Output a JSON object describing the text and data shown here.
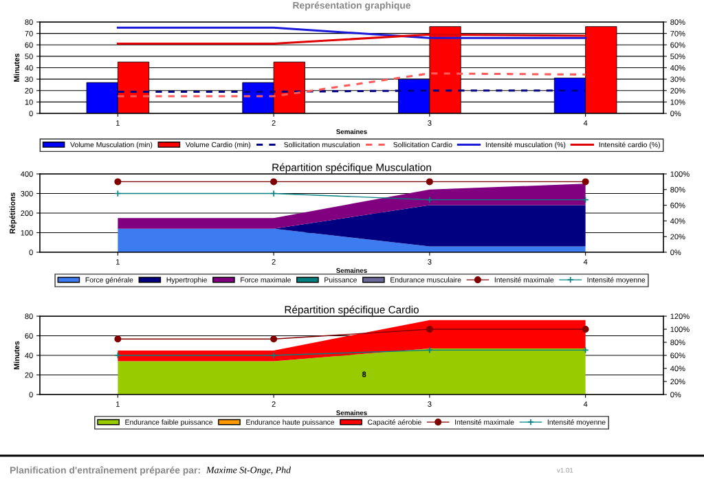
{
  "chart_data": [
    {
      "type": "bar",
      "title": "Représentation graphique",
      "xlabel": "Semaines",
      "ylabel": "Minutes",
      "categories": [
        "1",
        "2",
        "3",
        "4"
      ],
      "ylim": [
        0,
        80
      ],
      "yticks": [
        0,
        10,
        20,
        30,
        40,
        50,
        60,
        70,
        80
      ],
      "y2lim": [
        0,
        80
      ],
      "y2ticks": [
        {
          "value": 0,
          "label": "0%"
        },
        {
          "value": 10,
          "label": "10%"
        },
        {
          "value": 20,
          "label": "20%"
        },
        {
          "value": 30,
          "label": "30%"
        },
        {
          "value": 40,
          "label": "40%"
        },
        {
          "value": 50,
          "label": "50%"
        },
        {
          "value": 60,
          "label": "60%"
        },
        {
          "value": 70,
          "label": "70%"
        },
        {
          "value": 80,
          "label": "80%"
        }
      ],
      "grid": "y",
      "legend": "bottom",
      "series": [
        {
          "name": "Volume Musculation (min)",
          "color": "#0000ff",
          "values": [
            27,
            27,
            30,
            31
          ]
        },
        {
          "name": "Volume Cardio (min)",
          "color": "#ff0000",
          "values": [
            45,
            45,
            76,
            76
          ]
        },
        {
          "name": "Sollicitation musculation",
          "type": "line",
          "axis": "y2",
          "line_style": "dashed",
          "color": "#000080",
          "values": [
            19,
            19,
            20,
            20
          ]
        },
        {
          "name": "Sollicitation Cardio",
          "type": "line",
          "axis": "y2",
          "line_style": "dashed",
          "color": "#ff5a5a",
          "values": [
            15,
            15,
            35,
            34
          ]
        },
        {
          "name": "Intensité musculation (%)",
          "type": "line",
          "axis": "y2",
          "line_style": "solid",
          "color": "#1a1ad8",
          "values": [
            75,
            75,
            66,
            66
          ]
        },
        {
          "name": "Intensité cardio (%)",
          "type": "line",
          "axis": "y2",
          "line_style": "solid",
          "color": "#e00000",
          "values": [
            61,
            61,
            69,
            68
          ]
        }
      ]
    },
    {
      "type": "area",
      "stacked": true,
      "title": "Répartition spécifique Musculation",
      "xlabel": "Semaines",
      "ylabel": "Répétitions",
      "categories": [
        "1",
        "2",
        "3",
        "4"
      ],
      "ylim": [
        0,
        400
      ],
      "yticks": [
        0,
        100,
        200,
        300,
        400
      ],
      "y2lim": [
        0,
        100
      ],
      "y2ticks": [
        {
          "value": 0,
          "label": "0%"
        },
        {
          "value": 20,
          "label": "20%"
        },
        {
          "value": 40,
          "label": "40%"
        },
        {
          "value": 60,
          "label": "60%"
        },
        {
          "value": 80,
          "label": "80%"
        },
        {
          "value": 100,
          "label": "100%"
        }
      ],
      "grid": "y",
      "legend": "bottom",
      "series": [
        {
          "name": "Force générale",
          "color": "#3d7cf0",
          "values": [
            120,
            120,
            30,
            30
          ]
        },
        {
          "name": "Hypertrophie",
          "color": "#000080",
          "values": [
            0,
            0,
            210,
            210
          ]
        },
        {
          "name": "Force maximale",
          "color": "#800080",
          "values": [
            55,
            55,
            80,
            110
          ]
        },
        {
          "name": "Puissance",
          "color": "#008080",
          "values": [
            null,
            null,
            null,
            null
          ]
        },
        {
          "name": "Endurance musculaire",
          "color": "#6a6a9a",
          "values": [
            null,
            null,
            null,
            null
          ]
        },
        {
          "name": "Intensité maximale",
          "type": "line",
          "axis": "y2",
          "marker": "circle",
          "color": "#800000",
          "values": [
            90,
            90,
            90,
            90
          ]
        },
        {
          "name": "Intensité moyenne",
          "type": "line",
          "axis": "y2",
          "marker": "cross",
          "color": "#008080",
          "values": [
            75,
            75,
            67,
            67
          ]
        }
      ]
    },
    {
      "type": "area",
      "stacked": true,
      "title": "Répartition spécifique Cardio",
      "xlabel": "Semaines",
      "ylabel": "Minutes",
      "categories": [
        "1",
        "2",
        "3",
        "4"
      ],
      "ylim": [
        0,
        80
      ],
      "yticks": [
        0,
        20,
        40,
        60,
        80
      ],
      "y2lim": [
        0,
        120
      ],
      "y2ticks": [
        {
          "value": 0,
          "label": "0%"
        },
        {
          "value": 20,
          "label": "20%"
        },
        {
          "value": 40,
          "label": "40%"
        },
        {
          "value": 60,
          "label": "60%"
        },
        {
          "value": 80,
          "label": "80%"
        },
        {
          "value": 100,
          "label": "100%"
        },
        {
          "value": 120,
          "label": "120%"
        }
      ],
      "grid": "y",
      "legend": "bottom",
      "annotations": [
        "8",
        "Planification d'entraînement préparée par:",
        "Maxime St-Onge, Phd",
        "v1.01"
      ],
      "series": [
        {
          "name": "Endurance faible puissance",
          "color": "#99cc00",
          "values": [
            34,
            34,
            47,
            47
          ]
        },
        {
          "name": "Endurance haute puissance",
          "color": "#ff9900",
          "values": [
            null,
            null,
            null,
            null
          ]
        },
        {
          "name": "Capacité aérobie",
          "color": "#ff0000",
          "values": [
            11,
            11,
            29,
            29
          ]
        },
        {
          "name": "Intensité maximale",
          "type": "line",
          "axis": "y2",
          "marker": "circle",
          "color": "#800000",
          "values": [
            85,
            85,
            100,
            100
          ]
        },
        {
          "name": "Intensité moyenne",
          "type": "line",
          "axis": "y2",
          "marker": "cross",
          "color": "#008080",
          "values": [
            60,
            60,
            68,
            68
          ]
        }
      ]
    }
  ]
}
